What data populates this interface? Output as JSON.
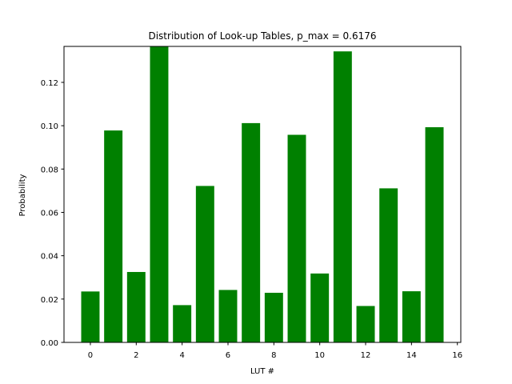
{
  "chart_data": {
    "type": "bar",
    "title": "Distribution of Look-up Tables, p_max = 0.6176",
    "xlabel": "LUT #",
    "ylabel": "Probability",
    "x": [
      0,
      1,
      2,
      3,
      4,
      5,
      6,
      7,
      8,
      9,
      10,
      11,
      12,
      13,
      14,
      15
    ],
    "values": [
      0.0235,
      0.0978,
      0.0325,
      0.1366,
      0.0172,
      0.0722,
      0.0242,
      0.1012,
      0.0229,
      0.0958,
      0.0318,
      0.1343,
      0.0168,
      0.0711,
      0.0236,
      0.0993
    ],
    "xlim": [
      -1.15,
      16.15
    ],
    "ylim": [
      0,
      0.1366
    ],
    "xticks": [
      0,
      2,
      4,
      6,
      8,
      10,
      12,
      14,
      16
    ],
    "yticks": [
      0.0,
      0.02,
      0.04,
      0.06,
      0.08,
      0.1,
      0.12
    ],
    "ytick_labels": [
      "0.00",
      "0.02",
      "0.04",
      "0.06",
      "0.08",
      "0.10",
      "0.12"
    ],
    "bar_color": "#008000",
    "grid": false,
    "legend": "none"
  }
}
